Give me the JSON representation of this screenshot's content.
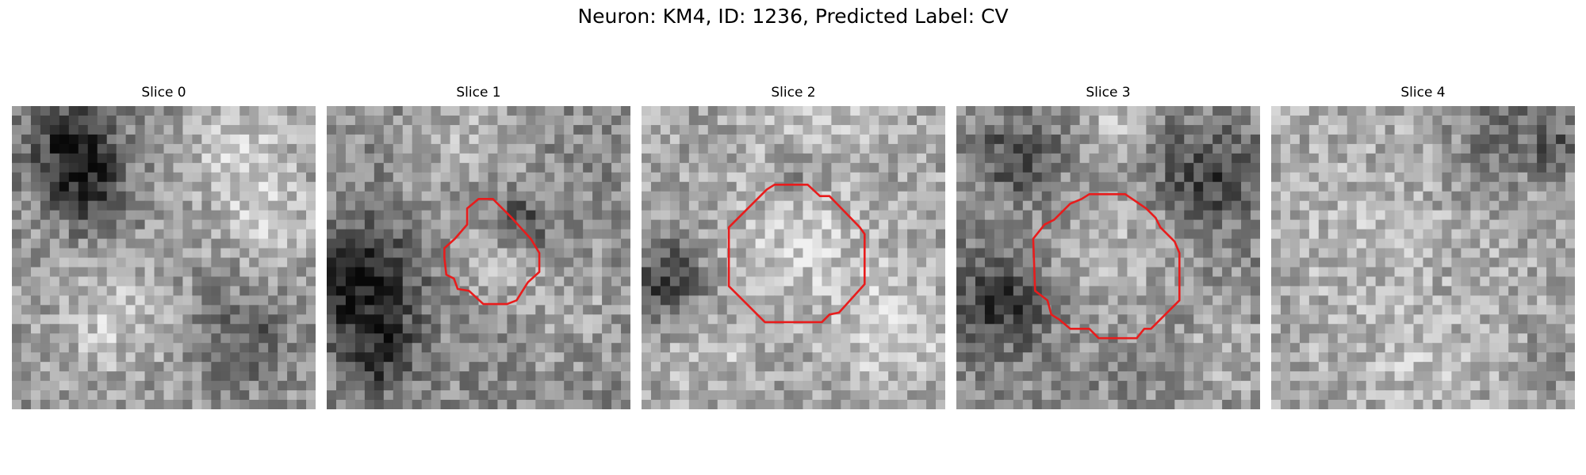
{
  "figure": {
    "title": "Neuron: KM4, ID: 1236, Predicted Label: CV"
  },
  "slices": [
    {
      "label": "Slice 0",
      "contour": false
    },
    {
      "label": "Slice 1",
      "contour": true
    },
    {
      "label": "Slice 2",
      "contour": true
    },
    {
      "label": "Slice 3",
      "contour": true
    },
    {
      "label": "Slice 4",
      "contour": false
    }
  ],
  "colors": {
    "contour": "#e81c1c",
    "background": "#ffffff"
  }
}
